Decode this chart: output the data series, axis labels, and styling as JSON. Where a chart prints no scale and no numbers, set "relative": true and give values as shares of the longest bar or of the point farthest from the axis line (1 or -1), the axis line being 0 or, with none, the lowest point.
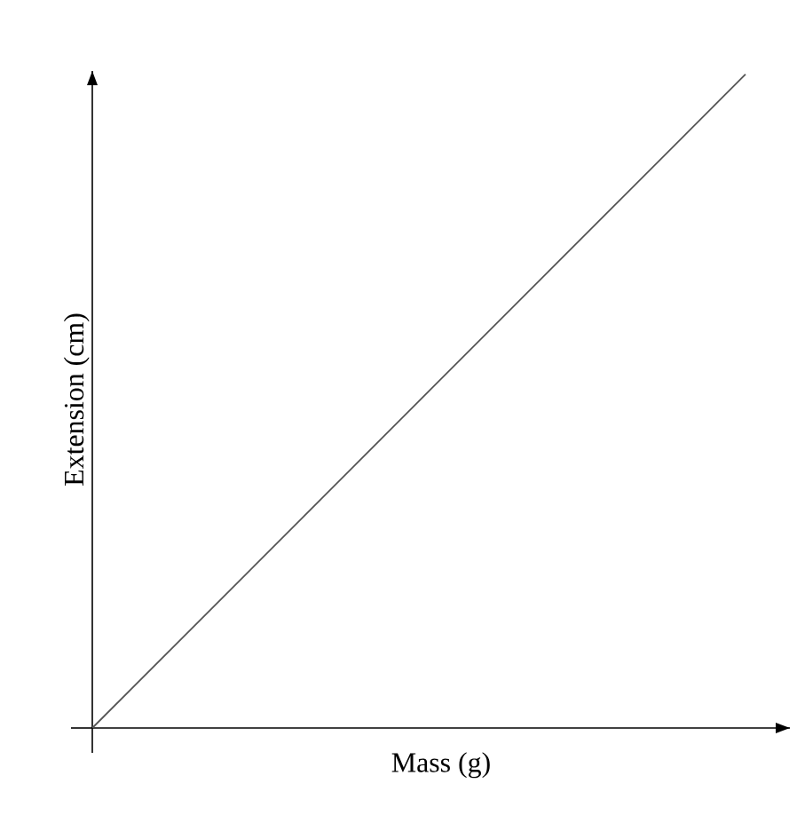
{
  "chart_data": {
    "type": "line",
    "xlabel": "Mass (g)",
    "ylabel": "Extension (cm)",
    "categories": [
      null,
      null
    ],
    "values": [
      0,
      1
    ],
    "color": "#555555",
    "relative": true
  }
}
